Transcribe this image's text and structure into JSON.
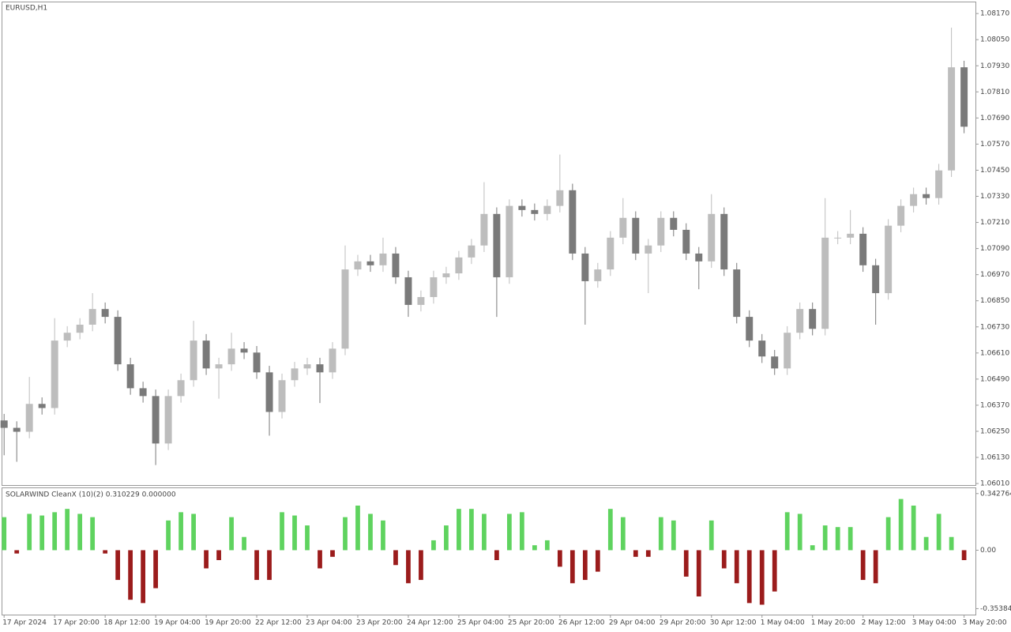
{
  "chart_data": [
    {
      "type": "candlestick",
      "title": "EURUSD,H1",
      "x": [
        0,
        1,
        2,
        3,
        4,
        5,
        6,
        7,
        8,
        9,
        10,
        11,
        12,
        13,
        14,
        15,
        16,
        17,
        18,
        19,
        20,
        21,
        22,
        23,
        24,
        25,
        26,
        27,
        28,
        29,
        30,
        31,
        32,
        33,
        34,
        35,
        36,
        37,
        38,
        39,
        40,
        41,
        42,
        43,
        44,
        45,
        46,
        47,
        48,
        49,
        50,
        51,
        52,
        53,
        54,
        55,
        56,
        57,
        58,
        59,
        60,
        61,
        62,
        63,
        64,
        65,
        66,
        67,
        68,
        69,
        70,
        71,
        72,
        73,
        74,
        75,
        76
      ],
      "open": [
        1.063,
        1.06266,
        1.06248,
        1.06376,
        1.06357,
        1.06667,
        1.06703,
        1.0674,
        1.06812,
        1.06776,
        1.06558,
        1.06448,
        1.06412,
        1.06194,
        1.06412,
        1.06485,
        1.06667,
        1.06539,
        1.06558,
        1.0663,
        1.06612,
        1.06521,
        1.06339,
        1.06485,
        1.06539,
        1.06558,
        1.06521,
        1.0663,
        1.06994,
        1.07031,
        1.07013,
        1.07067,
        1.06958,
        1.06831,
        1.06867,
        1.06958,
        1.06976,
        1.07049,
        1.07104,
        1.07249,
        1.06958,
        1.07286,
        1.07267,
        1.07249,
        1.07286,
        1.07358,
        1.07067,
        1.0694,
        1.06994,
        1.0714,
        1.07231,
        1.07067,
        1.07104,
        1.07231,
        1.07176,
        1.07067,
        1.07031,
        1.07249,
        1.06994,
        1.06776,
        1.06667,
        1.06594,
        1.06539,
        1.06703,
        1.06812,
        1.06721,
        1.0714,
        1.0714,
        1.07158,
        1.07013,
        1.06885,
        1.07195,
        1.07286,
        1.0734,
        1.07322,
        1.07449,
        1.07923
      ],
      "high": [
        1.0633,
        1.06296,
        1.065,
        1.06406,
        1.0677,
        1.06733,
        1.0677,
        1.06885,
        1.06842,
        1.06806,
        1.06588,
        1.06478,
        1.06442,
        1.06442,
        1.06515,
        1.06758,
        1.06697,
        1.06588,
        1.06703,
        1.0666,
        1.06642,
        1.06551,
        1.06515,
        1.06569,
        1.06588,
        1.06588,
        1.0666,
        1.07104,
        1.07061,
        1.07061,
        1.0714,
        1.07097,
        1.06988,
        1.06897,
        1.06988,
        1.07006,
        1.07079,
        1.07134,
        1.07395,
        1.07279,
        1.07316,
        1.07316,
        1.07297,
        1.07316,
        1.07522,
        1.07388,
        1.07097,
        1.07024,
        1.0717,
        1.07322,
        1.07261,
        1.07134,
        1.07261,
        1.07261,
        1.07206,
        1.07097,
        1.0734,
        1.07279,
        1.07024,
        1.06806,
        1.06697,
        1.06624,
        1.06733,
        1.06842,
        1.06842,
        1.07322,
        1.0717,
        1.07267,
        1.07188,
        1.07043,
        1.07225,
        1.07316,
        1.0737,
        1.0737,
        1.07479,
        1.08105,
        1.07953
      ],
      "low": [
        1.0614,
        1.0611,
        1.06218,
        1.06327,
        1.06327,
        1.06637,
        1.06673,
        1.0671,
        1.06746,
        1.06528,
        1.06418,
        1.06382,
        1.06095,
        1.06164,
        1.06382,
        1.06455,
        1.06509,
        1.064,
        1.06528,
        1.06582,
        1.06491,
        1.0623,
        1.06309,
        1.06455,
        1.06509,
        1.0638,
        1.06491,
        1.066,
        1.06964,
        1.06983,
        1.06983,
        1.06928,
        1.06776,
        1.06801,
        1.06837,
        1.06928,
        1.06946,
        1.07019,
        1.07074,
        1.06776,
        1.06928,
        1.07237,
        1.07219,
        1.07219,
        1.07256,
        1.07037,
        1.0674,
        1.0691,
        1.06964,
        1.0711,
        1.07037,
        1.06885,
        1.07074,
        1.07146,
        1.07037,
        1.06903,
        1.07001,
        1.06964,
        1.06746,
        1.06637,
        1.06564,
        1.06509,
        1.06509,
        1.06673,
        1.06691,
        1.06691,
        1.0711,
        1.0711,
        1.06983,
        1.0674,
        1.06855,
        1.07165,
        1.07256,
        1.07292,
        1.07292,
        1.07419,
        1.0762
      ],
      "close": [
        1.06266,
        1.06248,
        1.06376,
        1.06357,
        1.06667,
        1.06703,
        1.0674,
        1.06812,
        1.06776,
        1.06558,
        1.06448,
        1.06412,
        1.06194,
        1.06412,
        1.06485,
        1.06667,
        1.06539,
        1.06558,
        1.0663,
        1.06612,
        1.06521,
        1.06339,
        1.06485,
        1.06539,
        1.06558,
        1.06521,
        1.0663,
        1.06994,
        1.07031,
        1.07013,
        1.07067,
        1.06958,
        1.06831,
        1.06867,
        1.06958,
        1.06976,
        1.07049,
        1.07104,
        1.07249,
        1.06958,
        1.07286,
        1.07267,
        1.07249,
        1.07286,
        1.07358,
        1.07067,
        1.0694,
        1.06994,
        1.0714,
        1.07231,
        1.07067,
        1.07104,
        1.07231,
        1.07176,
        1.07067,
        1.07031,
        1.07249,
        1.06994,
        1.06776,
        1.06667,
        1.06594,
        1.06539,
        1.06703,
        1.06812,
        1.06721,
        1.0714,
        1.0714,
        1.07158,
        1.07013,
        1.06885,
        1.07195,
        1.07286,
        1.0734,
        1.07322,
        1.07449,
        1.07923,
        1.0765
      ],
      "up_color": "#bdbdbd",
      "down_color": "#7a7a7a",
      "xlim": [
        -0.2,
        76.9
      ],
      "ylim": [
        1.06003,
        1.08225
      ],
      "yticks": [
        {
          "value": 1.0817,
          "label": "1.08170"
        },
        {
          "value": 1.0805,
          "label": "1.08050"
        },
        {
          "value": 1.0793,
          "label": "1.07930"
        },
        {
          "value": 1.0781,
          "label": "1.07810"
        },
        {
          "value": 1.0769,
          "label": "1.07690"
        },
        {
          "value": 1.0757,
          "label": "1.07570"
        },
        {
          "value": 1.0745,
          "label": "1.07450"
        },
        {
          "value": 1.0733,
          "label": "1.07330"
        },
        {
          "value": 1.0721,
          "label": "1.07210"
        },
        {
          "value": 1.0709,
          "label": "1.07090"
        },
        {
          "value": 1.0697,
          "label": "1.06970"
        },
        {
          "value": 1.0685,
          "label": "1.06850"
        },
        {
          "value": 1.0673,
          "label": "1.06730"
        },
        {
          "value": 1.0661,
          "label": "1.06610"
        },
        {
          "value": 1.0649,
          "label": "1.06490"
        },
        {
          "value": 1.0637,
          "label": "1.06370"
        },
        {
          "value": 1.0625,
          "label": "1.06250"
        },
        {
          "value": 1.0613,
          "label": "1.06130"
        },
        {
          "value": 1.0601,
          "label": "1.06010"
        }
      ]
    },
    {
      "type": "bar",
      "title": "SOLARWIND CleanX (10)(2) 0.310229 0.000000",
      "x": [
        0,
        1,
        2,
        3,
        4,
        5,
        6,
        7,
        8,
        9,
        10,
        11,
        12,
        13,
        14,
        15,
        16,
        17,
        18,
        19,
        20,
        21,
        22,
        23,
        24,
        25,
        26,
        27,
        28,
        29,
        30,
        31,
        32,
        33,
        34,
        35,
        36,
        37,
        38,
        39,
        40,
        41,
        42,
        43,
        44,
        45,
        46,
        47,
        48,
        49,
        50,
        51,
        52,
        53,
        54,
        55,
        56,
        57,
        58,
        59,
        60,
        61,
        62,
        63,
        64,
        65,
        66,
        67,
        68,
        69,
        70,
        71,
        72,
        73,
        74,
        75,
        76
      ],
      "values": [
        0.2,
        -0.02,
        0.22,
        0.21,
        0.23,
        0.25,
        0.22,
        0.2,
        -0.02,
        -0.18,
        -0.3,
        -0.32,
        -0.23,
        0.18,
        0.23,
        0.22,
        -0.11,
        -0.06,
        0.2,
        0.08,
        -0.18,
        -0.18,
        0.23,
        0.21,
        0.15,
        -0.11,
        -0.04,
        0.2,
        0.27,
        0.22,
        0.18,
        -0.09,
        -0.2,
        -0.18,
        0.06,
        0.15,
        0.25,
        0.25,
        0.22,
        -0.06,
        0.22,
        0.23,
        0.03,
        0.06,
        -0.1,
        -0.2,
        -0.18,
        -0.13,
        0.25,
        0.2,
        -0.04,
        -0.04,
        0.2,
        0.18,
        -0.16,
        -0.28,
        0.18,
        -0.11,
        -0.2,
        -0.32,
        -0.33,
        -0.25,
        0.23,
        0.22,
        0.03,
        0.15,
        0.14,
        0.14,
        -0.18,
        -0.2,
        0.2,
        0.31,
        0.27,
        0.08,
        0.22,
        0.08,
        -0.06
      ],
      "positive_color": "#5fd35f",
      "negative_color": "#9b1c1c",
      "xlim": [
        -0.2,
        76.9
      ],
      "ylim": [
        -0.39,
        0.38
      ],
      "yticks": [
        0.342764,
        {
          "value": 0,
          "label": "0.00"
        },
        -0.353842
      ],
      "xticks": [
        {
          "value": 0,
          "label": "17 Apr 2024"
        },
        {
          "value": 4,
          "label": "17 Apr 20:00"
        },
        {
          "value": 8,
          "label": "18 Apr 12:00"
        },
        {
          "value": 12,
          "label": "19 Apr 04:00"
        },
        {
          "value": 16,
          "label": "19 Apr 20:00"
        },
        {
          "value": 20,
          "label": "22 Apr 12:00"
        },
        {
          "value": 24,
          "label": "23 Apr 04:00"
        },
        {
          "value": 28,
          "label": "23 Apr 20:00"
        },
        {
          "value": 32,
          "label": "24 Apr 12:00"
        },
        {
          "value": 36,
          "label": "25 Apr 04:00"
        },
        {
          "value": 40,
          "label": "25 Apr 20:00"
        },
        {
          "value": 44,
          "label": "26 Apr 12:00"
        },
        {
          "value": 48,
          "label": "29 Apr 04:00"
        },
        {
          "value": 52,
          "label": "29 Apr 20:00"
        },
        {
          "value": 56,
          "label": "30 Apr 12:00"
        },
        {
          "value": 60,
          "label": "1 May 04:00"
        },
        {
          "value": 64,
          "label": "1 May 20:00"
        },
        {
          "value": 68,
          "label": "2 May 12:00"
        },
        {
          "value": 72,
          "label": "3 May 04:00"
        },
        {
          "value": 76,
          "label": "3 May 20:00"
        }
      ]
    }
  ]
}
